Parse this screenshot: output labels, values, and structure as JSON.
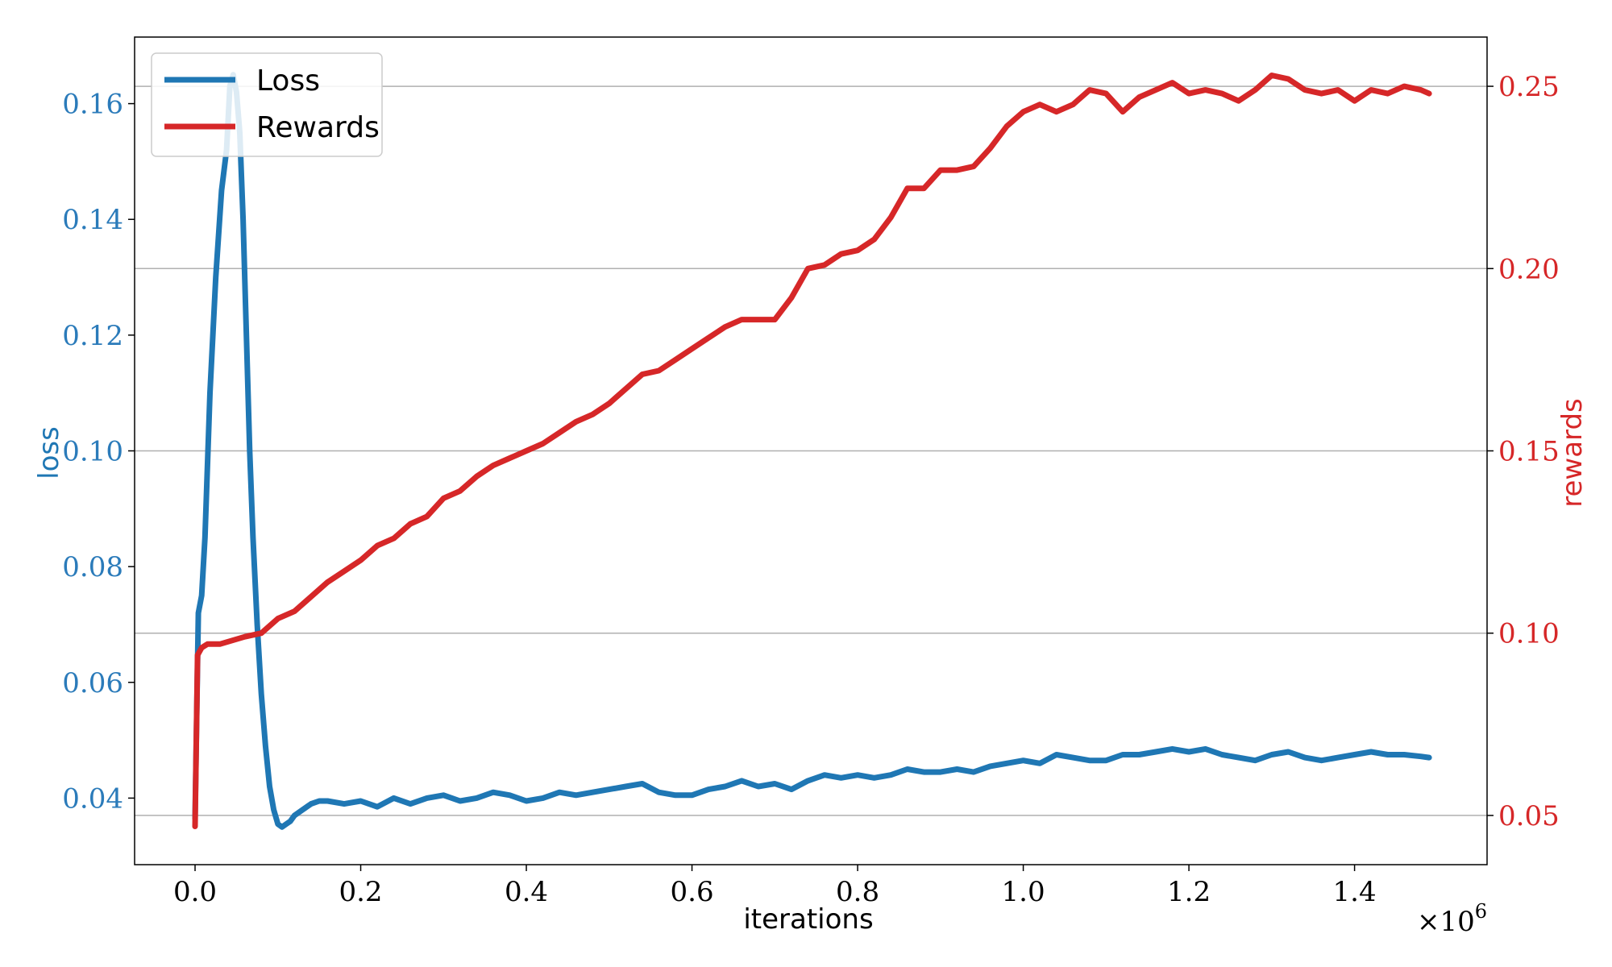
{
  "chart_data": {
    "type": "line",
    "title": "",
    "xlabel": "iterations",
    "x_multiplier_label": "×10",
    "x_multiplier_exp": "6",
    "x_scale_factor": 1000000,
    "xlim": [
      -0.073,
      1.56
    ],
    "x_ticks": [
      "0.0",
      "0.2",
      "0.4",
      "0.6",
      "0.8",
      "1.0",
      "1.2",
      "1.4"
    ],
    "left_axis": {
      "label": "loss",
      "color": "#1f77b4",
      "tick_color": "#2b7bba",
      "ylim": [
        0.0285,
        0.1715
      ],
      "ticks": [
        "0.04",
        "0.06",
        "0.08",
        "0.10",
        "0.12",
        "0.14",
        "0.16"
      ]
    },
    "right_axis": {
      "label": "rewards",
      "color": "#d62728",
      "ylim": [
        0.0365,
        0.2635
      ],
      "ticks": [
        "0.05",
        "0.10",
        "0.15",
        "0.20",
        "0.25"
      ]
    },
    "grid": "horizontal lines at right-axis ticks",
    "legend": {
      "position": "top-left",
      "entries": [
        "Loss",
        "Rewards"
      ]
    },
    "series": [
      {
        "name": "Loss",
        "axis": "left",
        "color": "#1f77b4",
        "x": [
          0.0,
          0.004,
          0.008,
          0.012,
          0.018,
          0.025,
          0.032,
          0.038,
          0.042,
          0.046,
          0.05,
          0.054,
          0.058,
          0.062,
          0.066,
          0.07,
          0.075,
          0.08,
          0.085,
          0.09,
          0.095,
          0.1,
          0.105,
          0.11,
          0.115,
          0.12,
          0.13,
          0.14,
          0.15,
          0.16,
          0.18,
          0.2,
          0.22,
          0.24,
          0.26,
          0.28,
          0.3,
          0.32,
          0.34,
          0.36,
          0.38,
          0.4,
          0.42,
          0.44,
          0.46,
          0.48,
          0.5,
          0.52,
          0.54,
          0.56,
          0.58,
          0.6,
          0.62,
          0.64,
          0.66,
          0.68,
          0.7,
          0.72,
          0.74,
          0.76,
          0.78,
          0.8,
          0.82,
          0.84,
          0.86,
          0.88,
          0.9,
          0.92,
          0.94,
          0.96,
          0.98,
          1.0,
          1.02,
          1.04,
          1.06,
          1.08,
          1.1,
          1.12,
          1.14,
          1.16,
          1.18,
          1.2,
          1.22,
          1.24,
          1.26,
          1.28,
          1.3,
          1.32,
          1.34,
          1.36,
          1.38,
          1.4,
          1.42,
          1.44,
          1.46,
          1.48,
          1.49
        ],
        "values": [
          0.0365,
          0.072,
          0.075,
          0.085,
          0.11,
          0.13,
          0.145,
          0.152,
          0.163,
          0.165,
          0.162,
          0.155,
          0.14,
          0.12,
          0.1,
          0.085,
          0.07,
          0.058,
          0.049,
          0.042,
          0.038,
          0.0355,
          0.035,
          0.0355,
          0.036,
          0.037,
          0.038,
          0.039,
          0.0395,
          0.0395,
          0.039,
          0.0395,
          0.0385,
          0.04,
          0.039,
          0.04,
          0.0405,
          0.0395,
          0.04,
          0.041,
          0.0405,
          0.0395,
          0.04,
          0.041,
          0.0405,
          0.041,
          0.0415,
          0.042,
          0.0425,
          0.041,
          0.0405,
          0.0405,
          0.0415,
          0.042,
          0.043,
          0.042,
          0.0425,
          0.0415,
          0.043,
          0.044,
          0.0435,
          0.044,
          0.0435,
          0.044,
          0.045,
          0.0445,
          0.0445,
          0.045,
          0.0445,
          0.0455,
          0.046,
          0.0465,
          0.046,
          0.0475,
          0.047,
          0.0465,
          0.0465,
          0.0475,
          0.0475,
          0.048,
          0.0485,
          0.048,
          0.0485,
          0.0475,
          0.047,
          0.0465,
          0.0475,
          0.048,
          0.047,
          0.0465,
          0.047,
          0.0475,
          0.048,
          0.0475,
          0.0475,
          0.0472,
          0.047
        ]
      },
      {
        "name": "Rewards",
        "axis": "right",
        "color": "#d62728",
        "x": [
          0.0,
          0.003,
          0.008,
          0.015,
          0.03,
          0.06,
          0.08,
          0.1,
          0.12,
          0.14,
          0.16,
          0.18,
          0.2,
          0.22,
          0.24,
          0.26,
          0.28,
          0.3,
          0.32,
          0.34,
          0.36,
          0.38,
          0.4,
          0.42,
          0.44,
          0.46,
          0.48,
          0.5,
          0.52,
          0.54,
          0.56,
          0.58,
          0.6,
          0.62,
          0.64,
          0.66,
          0.68,
          0.7,
          0.72,
          0.74,
          0.76,
          0.78,
          0.8,
          0.82,
          0.84,
          0.86,
          0.88,
          0.9,
          0.92,
          0.94,
          0.96,
          0.98,
          1.0,
          1.02,
          1.04,
          1.06,
          1.08,
          1.1,
          1.12,
          1.14,
          1.16,
          1.18,
          1.2,
          1.22,
          1.24,
          1.26,
          1.28,
          1.3,
          1.32,
          1.34,
          1.36,
          1.38,
          1.4,
          1.42,
          1.44,
          1.46,
          1.48,
          1.49
        ],
        "values": [
          0.047,
          0.094,
          0.096,
          0.097,
          0.097,
          0.099,
          0.1,
          0.104,
          0.106,
          0.11,
          0.114,
          0.117,
          0.12,
          0.124,
          0.126,
          0.13,
          0.132,
          0.137,
          0.139,
          0.143,
          0.146,
          0.148,
          0.15,
          0.152,
          0.155,
          0.158,
          0.16,
          0.163,
          0.167,
          0.171,
          0.172,
          0.175,
          0.178,
          0.181,
          0.184,
          0.186,
          0.186,
          0.186,
          0.192,
          0.2,
          0.201,
          0.204,
          0.205,
          0.208,
          0.214,
          0.222,
          0.222,
          0.227,
          0.227,
          0.228,
          0.233,
          0.239,
          0.243,
          0.245,
          0.243,
          0.245,
          0.249,
          0.248,
          0.243,
          0.247,
          0.249,
          0.251,
          0.248,
          0.249,
          0.248,
          0.246,
          0.249,
          0.253,
          0.252,
          0.249,
          0.248,
          0.249,
          0.246,
          0.249,
          0.248,
          0.25,
          0.249,
          0.248
        ]
      }
    ]
  }
}
